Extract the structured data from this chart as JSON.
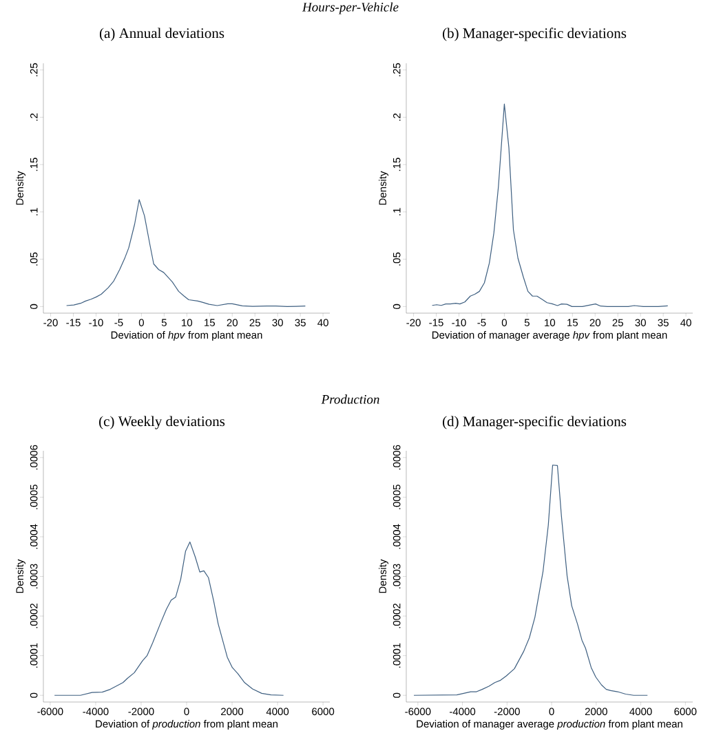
{
  "chart_data": [
    {
      "type": "line",
      "annotations": [
        "Hours-per-Vehicle"
      ],
      "title": "(a) Annual deviations",
      "xlabel": "Deviation of *hpv* from plant mean",
      "ylabel": "Density",
      "color": "#3e5f80",
      "xlim": [
        -21.6,
        41.5
      ],
      "ylim": [
        -0.007,
        0.257
      ],
      "xticks": [
        -20,
        -15,
        -10,
        -5,
        0,
        5,
        10,
        15,
        20,
        25,
        30,
        35,
        40
      ],
      "yticks": [
        0,
        {
          "value": 0.05,
          "label": ".05"
        },
        {
          "value": 0.1,
          "label": ".1"
        },
        {
          "value": 0.15,
          "label": ".15"
        },
        {
          "value": 0.2,
          "label": ".2"
        },
        {
          "value": 0.25,
          "label": ".25"
        }
      ],
      "x": [
        -16.5,
        -14.9,
        -13.4,
        -12.3,
        -11.1,
        -10,
        -8.85,
        -7.3,
        -6.1,
        -4.8,
        -3.6,
        -2.8,
        -1.5,
        -0.5,
        0.66,
        1.8,
        2.7,
        3.8,
        4.9,
        6.8,
        8.2,
        9.4,
        10.4,
        12.4,
        13.4,
        14.9,
        16.7,
        19,
        20,
        22.2,
        24.5,
        27.6,
        29.6,
        32.1,
        34.1,
        36.1
      ],
      "values": [
        0.001,
        0.0017,
        0.0034,
        0.0058,
        0.0077,
        0.01,
        0.013,
        0.02,
        0.027,
        0.039,
        0.052,
        0.062,
        0.087,
        0.113,
        0.096,
        0.067,
        0.045,
        0.039,
        0.036,
        0.026,
        0.016,
        0.011,
        0.0072,
        0.0058,
        0.0046,
        0.0024,
        0.001,
        0.0029,
        0.0029,
        0.0007,
        0.0002,
        0.0005,
        0.0005,
        0,
        0.0002,
        0.0005
      ]
    },
    {
      "type": "line",
      "title": "(b) Manager-specific deviations",
      "xlabel": "Deviation of manager average *hpv* from plant mean",
      "ylabel": "Density",
      "color": "#3e5f80",
      "xlim": [
        -21.6,
        41.5
      ],
      "ylim": [
        -0.007,
        0.257
      ],
      "xticks": [
        -20,
        -15,
        -10,
        -5,
        0,
        5,
        10,
        15,
        20,
        25,
        30,
        35,
        40
      ],
      "yticks": [
        0,
        {
          "value": 0.05,
          "label": ".05"
        },
        {
          "value": 0.1,
          "label": ".1"
        },
        {
          "value": 0.15,
          "label": ".15"
        },
        {
          "value": 0.2,
          "label": ".2"
        },
        {
          "value": 0.25,
          "label": ".25"
        }
      ],
      "x": [
        -15.9,
        -14.9,
        -13.9,
        -12.9,
        -11.9,
        -10.7,
        -9.8,
        -8.7,
        -7.5,
        -6.5,
        -5.5,
        -4.4,
        -3.3,
        -2.3,
        -1.3,
        0,
        1.0,
        2.0,
        3.0,
        4.2,
        5.2,
        6.2,
        7.2,
        8.5,
        9.4,
        10.5,
        11.7,
        12.6,
        13.8,
        14.9,
        17.2,
        18.9,
        20.1,
        21.2,
        22.7,
        27.3,
        28.6,
        30.6,
        33.9,
        36
      ],
      "values": [
        0.0012,
        0.0019,
        0.0012,
        0.0027,
        0.0027,
        0.0034,
        0.0027,
        0.0048,
        0.011,
        0.013,
        0.016,
        0.025,
        0.046,
        0.078,
        0.127,
        0.214,
        0.168,
        0.081,
        0.051,
        0.031,
        0.016,
        0.011,
        0.011,
        0.007,
        0.0041,
        0.0029,
        0.001,
        0.0027,
        0.0024,
        0,
        0,
        0.0017,
        0.0027,
        0.0005,
        0,
        0,
        0.001,
        0,
        0,
        0.0007
      ]
    },
    {
      "type": "line",
      "annotations": [
        "Production"
      ],
      "title": "(c) Weekly deviations",
      "xlabel": "Deviation of *production* from plant mean",
      "ylabel": "Density",
      "color": "#3e5f80",
      "xlim": [
        -6300,
        6300
      ],
      "ylim": [
        -1.7e-05,
        0.000617
      ],
      "xticks": [
        -6000,
        -4000,
        -2000,
        0,
        2000,
        4000,
        6000
      ],
      "yticks": [
        0,
        {
          "value": 0.0001,
          "label": ".0001"
        },
        {
          "value": 0.0002,
          "label": ".0002"
        },
        {
          "value": 0.0003,
          "label": ".0003"
        },
        {
          "value": 0.0004,
          "label": ".0004"
        },
        {
          "value": 0.0005,
          "label": ".0005"
        },
        {
          "value": 0.0006,
          "label": ".0006"
        }
      ],
      "x": [
        -5810,
        -4670,
        -4160,
        -3710,
        -3360,
        -3100,
        -2800,
        -2600,
        -2300,
        -1940,
        -1740,
        -1490,
        -1140,
        -890,
        -680,
        -480,
        -260,
        -45,
        145,
        380,
        580,
        760,
        960,
        1190,
        1390,
        1790,
        2010,
        2250,
        2550,
        2900,
        3300,
        3710,
        4260
      ],
      "values": [
        0,
        0,
        7e-06,
        8e-06,
        1.5e-05,
        2.3e-05,
        3.2e-05,
        4.3e-05,
        5.7e-05,
        8.7e-05,
        0.0001,
        0.000133,
        0.000183,
        0.000217,
        0.00024,
        0.000248,
        0.000293,
        0.000364,
        0.000387,
        0.000349,
        0.000311,
        0.000314,
        0.000297,
        0.000238,
        0.00018,
        9.6e-05,
        7e-05,
        5.5e-05,
        3.2e-05,
        1.6e-05,
        5e-06,
        1e-06,
        0
      ]
    },
    {
      "type": "line",
      "title": "(d) Manager-specific deviations",
      "xlabel": "Deviation of manager average *production* from plant mean",
      "ylabel": "Density",
      "color": "#3e5f80",
      "xlim": [
        -6520,
        6330
      ],
      "ylim": [
        -1.7e-05,
        0.000617
      ],
      "xticks": [
        -6000,
        -4000,
        -2000,
        0,
        2000,
        4000,
        6000
      ],
      "yticks": [
        0,
        {
          "value": 0.0001,
          "label": ".0001"
        },
        {
          "value": 0.0002,
          "label": ".0002"
        },
        {
          "value": 0.0003,
          "label": ".0003"
        },
        {
          "value": 0.0004,
          "label": ".0004"
        },
        {
          "value": 0.0005,
          "label": ".0005"
        },
        {
          "value": 0.0006,
          "label": ".0006"
        }
      ],
      "x": [
        -6180,
        -4250,
        -3940,
        -3630,
        -3370,
        -3115,
        -2810,
        -2550,
        -2290,
        -2030,
        -1670,
        -1260,
        -1000,
        -750,
        -385,
        -150,
        45,
        260,
        440,
        695,
        900,
        1160,
        1360,
        1520,
        1775,
        1980,
        2240,
        2450,
        2650,
        2960,
        3320,
        3680,
        4300
      ],
      "values": [
        0,
        1e-06,
        5e-06,
        9e-06,
        9e-06,
        1.5e-05,
        2.3e-05,
        3.2e-05,
        3.8e-05,
        4.9e-05,
        6.7e-05,
        0.00011,
        0.000145,
        0.000197,
        0.000313,
        0.000429,
        0.000581,
        0.00058,
        0.000452,
        0.000301,
        0.000226,
        0.00018,
        0.000139,
        0.000119,
        7e-05,
        4.6e-05,
        2.6e-05,
        1.5e-05,
        1.2e-05,
        9e-06,
        3e-06,
        0,
        0
      ]
    }
  ]
}
